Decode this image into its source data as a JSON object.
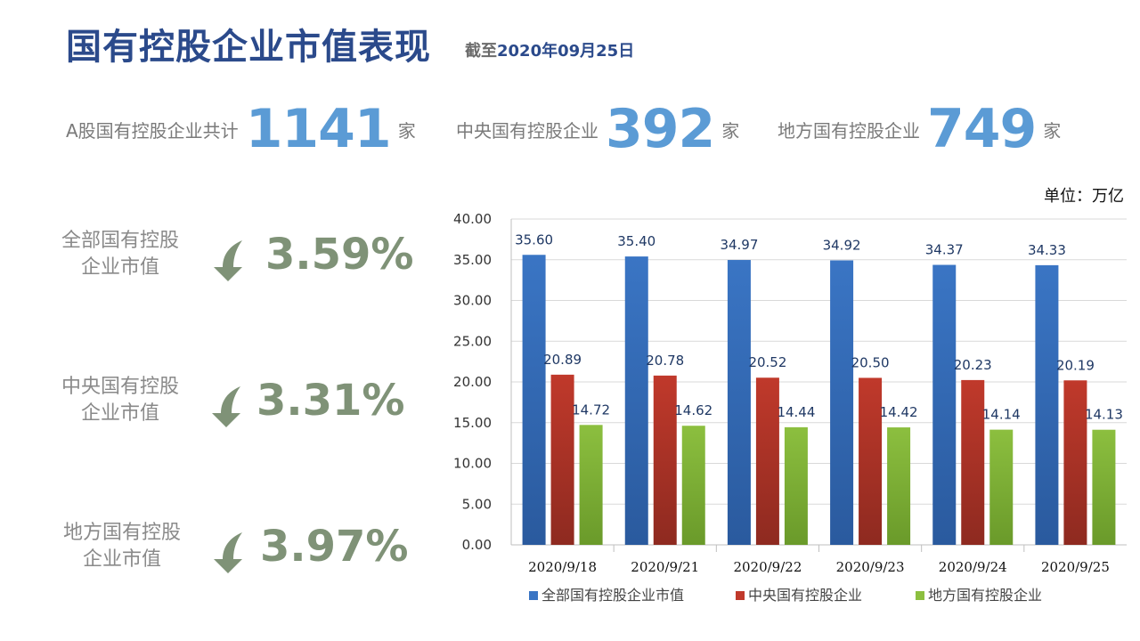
{
  "header": {
    "title": "国有控股企业市值表现",
    "subtitle_prefix": "截至",
    "subtitle_date": "2020年09月25日"
  },
  "stats": [
    {
      "label": "A股国有控股企业共计",
      "value": "1141",
      "unit": "家"
    },
    {
      "label": "中央国有控股企业",
      "value": "392",
      "unit": "家"
    },
    {
      "label": "地方国有控股企业",
      "value": "749",
      "unit": "家"
    }
  ],
  "changes": [
    {
      "label_line1": "全部国有控股",
      "label_line2": "企业市值",
      "value": "3.59%",
      "direction": "down"
    },
    {
      "label_line1": "中央国有控股",
      "label_line2": "企业市值",
      "value": "3.31%",
      "direction": "down"
    },
    {
      "label_line1": "地方国有控股",
      "label_line2": "企业市值",
      "value": "3.97%",
      "direction": "down"
    }
  ],
  "colors": {
    "title": "#2b4a8b",
    "stat_number": "#5b9bd5",
    "percent": "#7f9277",
    "series_all": "#3a75c4",
    "series_central": "#c0392b",
    "series_local": "#8cbf3f"
  },
  "chart_data": {
    "type": "bar",
    "unit_label": "单位：万亿",
    "categories": [
      "2020/9/18",
      "2020/9/21",
      "2020/9/22",
      "2020/9/23",
      "2020/9/24",
      "2020/9/25"
    ],
    "series": [
      {
        "name": "全部国有控股企业市值",
        "values": [
          35.6,
          35.4,
          34.97,
          34.92,
          34.37,
          34.33
        ]
      },
      {
        "name": "中央国有控股企业",
        "values": [
          20.89,
          20.78,
          20.52,
          20.5,
          20.23,
          20.19
        ]
      },
      {
        "name": "地方国有控股企业",
        "values": [
          14.72,
          14.62,
          14.44,
          14.42,
          14.14,
          14.13
        ]
      }
    ],
    "ylim": [
      0,
      40
    ],
    "yticks": [
      "0.00",
      "5.00",
      "10.00",
      "15.00",
      "20.00",
      "25.00",
      "30.00",
      "35.00",
      "40.00"
    ],
    "grid": true,
    "legend_position": "bottom"
  }
}
